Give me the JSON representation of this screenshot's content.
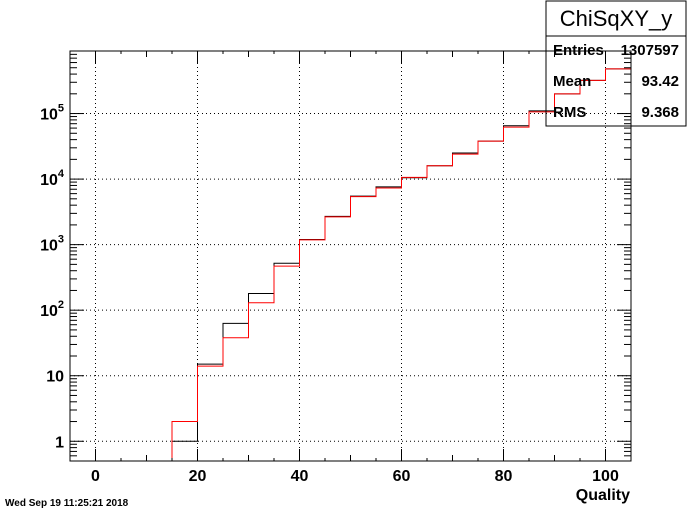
{
  "chart_data": {
    "type": "line",
    "title": "",
    "xlabel": "Quality",
    "ylabel": "",
    "xlim": [
      -5,
      105
    ],
    "ylim": [
      0.5,
      900000
    ],
    "y_scale": "log",
    "grid": true,
    "x_ticks": [
      "0",
      "20",
      "40",
      "60",
      "80",
      "100"
    ],
    "y_ticks": [
      {
        "base": "1",
        "exp": ""
      },
      {
        "base": "10",
        "exp": ""
      },
      {
        "base": "10",
        "exp": "2"
      },
      {
        "base": "10",
        "exp": "3"
      },
      {
        "base": "10",
        "exp": "4"
      },
      {
        "base": "10",
        "exp": "5"
      }
    ],
    "bin_edges": [
      -5,
      0,
      5,
      10,
      15,
      20,
      25,
      30,
      35,
      40,
      45,
      50,
      55,
      60,
      65,
      70,
      75,
      80,
      85,
      90,
      95,
      100,
      105
    ],
    "series": [
      {
        "color": "#000000",
        "values": [
          0,
          0,
          0,
          0,
          1,
          15,
          63,
          180,
          520,
          1200,
          2700,
          5500,
          7600,
          10500,
          16000,
          25000,
          38000,
          65000,
          110000,
          200000,
          320000,
          480000
        ]
      },
      {
        "color": "#ff0000",
        "values": [
          0,
          0,
          0,
          0,
          2,
          14,
          38,
          130,
          470,
          1180,
          2650,
          5400,
          7300,
          10600,
          16000,
          24000,
          38000,
          62000,
          106000,
          200000,
          320000,
          480000
        ]
      }
    ]
  },
  "stats_box": {
    "title": "ChiSqXY_y",
    "rows": [
      {
        "label": "Entries",
        "value": "1307597"
      },
      {
        "label": "Mean",
        "value": "93.42"
      },
      {
        "label": "RMS",
        "value": "9.368"
      }
    ]
  },
  "timestamp": "Wed Sep 19 11:25:21 2018"
}
